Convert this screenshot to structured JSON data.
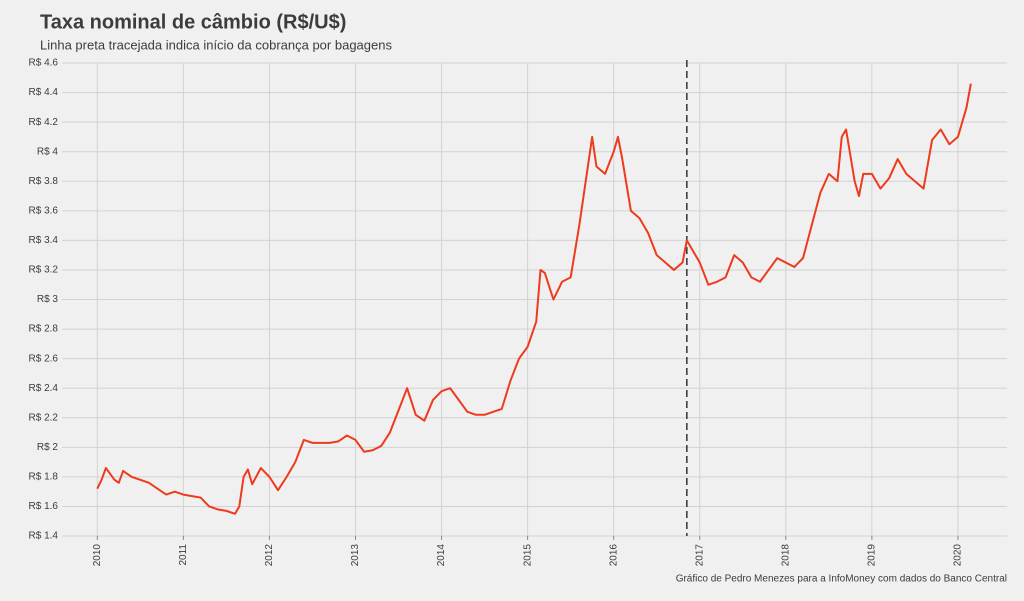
{
  "chart_data": {
    "type": "line",
    "title": "Taxa nominal de câmbio (R$/U$)",
    "subtitle": "Linha preta tracejada indica início da cobrança por bagagens",
    "caption": "Gráfico de Pedro Menezes para a InfoMoney com dados do Banco Central",
    "color": "#ee3a1d",
    "vline": 2016.85,
    "vline_color": "#333333",
    "grid": true,
    "xlim": [
      2009.59,
      2020.57
    ],
    "xticks": [
      2010,
      2011,
      2012,
      2013,
      2014,
      2015,
      2016,
      2017,
      2018,
      2019,
      2020
    ],
    "ylim": [
      1.4,
      4.6
    ],
    "yticks": [
      {
        "value": 1.4,
        "label": "R$ 1.4"
      },
      {
        "value": 1.6,
        "label": "R$ 1.6"
      },
      {
        "value": 1.8,
        "label": "R$ 1.8"
      },
      {
        "value": 2,
        "label": "R$ 2"
      },
      {
        "value": 2.2,
        "label": "R$ 2.2"
      },
      {
        "value": 2.4,
        "label": "R$ 2.4"
      },
      {
        "value": 2.6,
        "label": "R$ 2.6"
      },
      {
        "value": 2.8,
        "label": "R$ 2.8"
      },
      {
        "value": 3,
        "label": "R$ 3"
      },
      {
        "value": 3.2,
        "label": "R$ 3.2"
      },
      {
        "value": 3.4,
        "label": "R$ 3.4"
      },
      {
        "value": 3.6,
        "label": "R$ 3.6"
      },
      {
        "value": 3.8,
        "label": "R$ 3.8"
      },
      {
        "value": 4,
        "label": "R$ 4"
      },
      {
        "value": 4.2,
        "label": "R$ 4.2"
      },
      {
        "value": 4.4,
        "label": "R$ 4.4"
      },
      {
        "value": 4.6,
        "label": "R$ 4.6"
      }
    ],
    "x": [
      2010.0,
      2010.05,
      2010.1,
      2010.15,
      2010.2,
      2010.25,
      2010.3,
      2010.35,
      2010.4,
      2010.5,
      2010.6,
      2010.7,
      2010.8,
      2010.9,
      2011.0,
      2011.1,
      2011.2,
      2011.3,
      2011.4,
      2011.5,
      2011.6,
      2011.65,
      2011.7,
      2011.75,
      2011.8,
      2011.9,
      2012.0,
      2012.1,
      2012.2,
      2012.3,
      2012.4,
      2012.5,
      2012.6,
      2012.7,
      2012.8,
      2012.9,
      2013.0,
      2013.1,
      2013.2,
      2013.3,
      2013.4,
      2013.5,
      2013.6,
      2013.7,
      2013.8,
      2013.9,
      2014.0,
      2014.1,
      2014.2,
      2014.3,
      2014.4,
      2014.5,
      2014.6,
      2014.7,
      2014.8,
      2014.9,
      2015.0,
      2015.1,
      2015.15,
      2015.2,
      2015.3,
      2015.4,
      2015.5,
      2015.6,
      2015.7,
      2015.75,
      2015.8,
      2015.9,
      2016.0,
      2016.05,
      2016.1,
      2016.2,
      2016.3,
      2016.4,
      2016.5,
      2016.6,
      2016.7,
      2016.8,
      2016.85,
      2016.9,
      2017.0,
      2017.1,
      2017.2,
      2017.3,
      2017.4,
      2017.5,
      2017.6,
      2017.7,
      2017.8,
      2017.9,
      2018.0,
      2018.1,
      2018.2,
      2018.3,
      2018.4,
      2018.5,
      2018.6,
      2018.65,
      2018.7,
      2018.8,
      2018.85,
      2018.9,
      2019.0,
      2019.1,
      2019.2,
      2019.3,
      2019.4,
      2019.5,
      2019.6,
      2019.7,
      2019.8,
      2019.9,
      2020.0,
      2020.1,
      2020.15
    ],
    "values": [
      1.72,
      1.78,
      1.86,
      1.82,
      1.78,
      1.76,
      1.84,
      1.82,
      1.8,
      1.78,
      1.76,
      1.72,
      1.68,
      1.7,
      1.68,
      1.67,
      1.66,
      1.6,
      1.58,
      1.57,
      1.55,
      1.6,
      1.8,
      1.85,
      1.75,
      1.86,
      1.8,
      1.71,
      1.8,
      1.9,
      2.05,
      2.03,
      2.03,
      2.03,
      2.04,
      2.08,
      2.05,
      1.97,
      1.98,
      2.01,
      2.1,
      2.25,
      2.4,
      2.22,
      2.18,
      2.32,
      2.38,
      2.4,
      2.32,
      2.24,
      2.22,
      2.22,
      2.24,
      2.26,
      2.45,
      2.6,
      2.68,
      2.85,
      3.2,
      3.18,
      3.0,
      3.12,
      3.15,
      3.5,
      3.9,
      4.1,
      3.9,
      3.85,
      4.0,
      4.1,
      3.95,
      3.6,
      3.55,
      3.45,
      3.3,
      3.25,
      3.2,
      3.25,
      3.4,
      3.35,
      3.25,
      3.1,
      3.12,
      3.15,
      3.3,
      3.25,
      3.15,
      3.12,
      3.2,
      3.28,
      3.25,
      3.22,
      3.28,
      3.5,
      3.72,
      3.85,
      3.8,
      4.1,
      4.15,
      3.8,
      3.7,
      3.85,
      3.85,
      3.75,
      3.82,
      3.95,
      3.85,
      3.8,
      3.75,
      4.08,
      4.15,
      4.05,
      4.1,
      4.3,
      4.46
    ]
  }
}
